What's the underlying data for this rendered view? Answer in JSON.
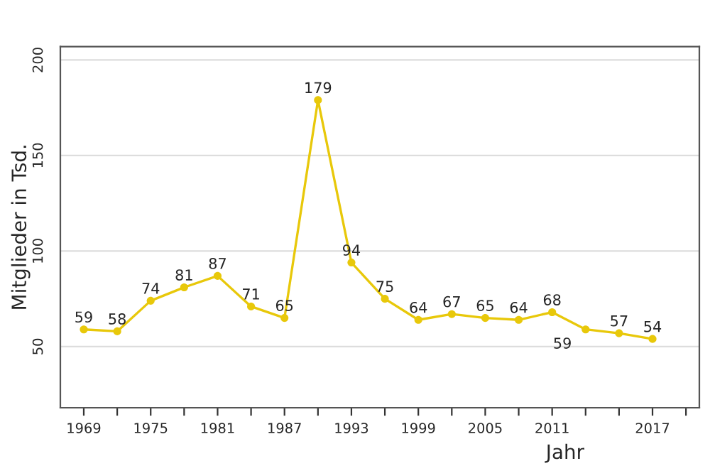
{
  "chart_data": {
    "type": "line",
    "xlabel": "Jahr",
    "ylabel": "Mitglieder in Tsd.",
    "categories": [
      "1969",
      null,
      "1975",
      null,
      "1981",
      null,
      "1987",
      null,
      "1993",
      null,
      "1999",
      null,
      "2005",
      null,
      "2011",
      null,
      null,
      "2017"
    ],
    "series": [
      {
        "color": "#e8c80a",
        "values": [
          59,
          58,
          74,
          81,
          87,
          71,
          65,
          179,
          94,
          75,
          64,
          67,
          65,
          64,
          68,
          59,
          57,
          54
        ]
      }
    ],
    "ylim": [
      18,
      207
    ],
    "yticks": [
      50,
      100,
      150,
      200
    ],
    "grid": "y",
    "marker": "circle",
    "line_style": "solid",
    "data_labels": true
  }
}
